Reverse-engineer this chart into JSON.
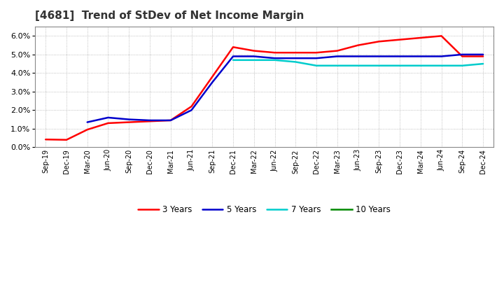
{
  "title": "[4681]  Trend of StDev of Net Income Margin",
  "title_fontsize": 11,
  "title_color": "#333333",
  "bg_color": "#ffffff",
  "plot_bg_color": "#ffffff",
  "grid_color": "#999999",
  "ylim": [
    0.0,
    0.065
  ],
  "yticks": [
    0.0,
    0.01,
    0.02,
    0.03,
    0.04,
    0.05,
    0.06
  ],
  "series": {
    "3 Years": {
      "color": "#ff0000",
      "lw": 1.8,
      "indices": [
        0,
        1,
        2,
        3,
        4,
        5,
        6,
        7,
        8,
        9,
        10,
        11,
        12,
        13,
        14,
        15,
        16,
        17,
        18,
        19,
        20,
        21
      ],
      "values": [
        0.0042,
        0.004,
        0.0095,
        0.013,
        0.0135,
        0.014,
        0.0145,
        0.022,
        0.038,
        0.054,
        0.052,
        0.051,
        0.051,
        0.051,
        0.052,
        0.055,
        0.057,
        0.058,
        0.059,
        0.06,
        0.049,
        0.049
      ]
    },
    "5 Years": {
      "color": "#0000cc",
      "lw": 1.8,
      "indices": [
        2,
        3,
        4,
        5,
        6,
        7,
        8,
        9,
        10,
        11,
        12,
        13,
        14,
        15,
        16,
        17,
        18,
        19,
        20,
        21
      ],
      "values": [
        0.0135,
        0.016,
        0.015,
        0.0145,
        0.0145,
        0.02,
        0.035,
        0.049,
        0.049,
        0.048,
        0.048,
        0.048,
        0.049,
        0.049,
        0.049,
        0.049,
        0.049,
        0.049,
        0.05,
        0.05
      ]
    },
    "7 Years": {
      "color": "#00cccc",
      "lw": 1.8,
      "indices": [
        9,
        10,
        11,
        12,
        13,
        14,
        15,
        16,
        17,
        18,
        19,
        20,
        21
      ],
      "values": [
        0.047,
        0.047,
        0.047,
        0.046,
        0.044,
        0.044,
        0.044,
        0.044,
        0.044,
        0.044,
        0.044,
        0.044,
        0.045
      ]
    },
    "10 Years": {
      "color": "#008800",
      "lw": 1.8,
      "indices": [],
      "values": []
    }
  },
  "legend_order": [
    "3 Years",
    "5 Years",
    "7 Years",
    "10 Years"
  ],
  "xtick_labels": [
    "Sep-19",
    "Dec-19",
    "Mar-20",
    "Jun-20",
    "Sep-20",
    "Dec-20",
    "Mar-21",
    "Jun-21",
    "Sep-21",
    "Dec-21",
    "Mar-22",
    "Jun-22",
    "Sep-22",
    "Dec-22",
    "Mar-23",
    "Jun-23",
    "Sep-23",
    "Dec-23",
    "Mar-24",
    "Jun-24",
    "Sep-24",
    "Dec-24"
  ]
}
